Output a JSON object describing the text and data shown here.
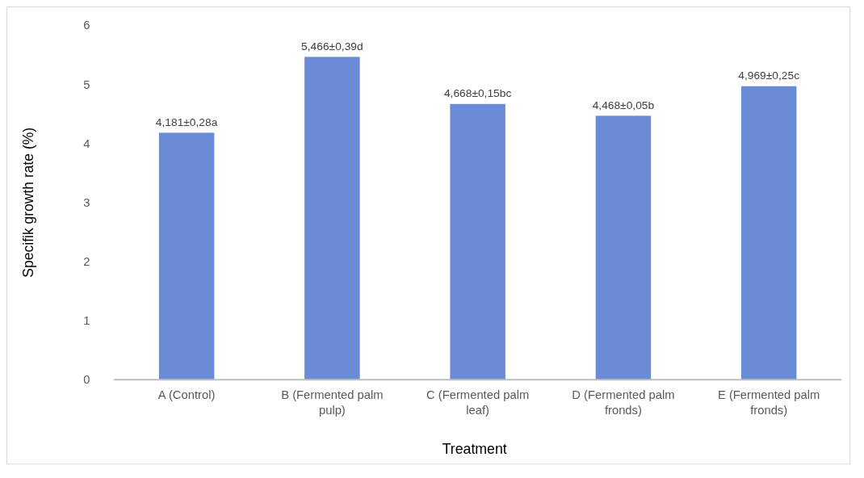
{
  "chart_data": {
    "type": "bar",
    "xlabel": "Treatment",
    "ylabel": "Specifik growth rate  (%)",
    "categories": [
      "A (Control)",
      "B (Fermented palm pulp)",
      "C (Fermented palm leaf)",
      "D (Fermented palm fronds)",
      "E (Fermented palm fronds)"
    ],
    "values": [
      4.181,
      5.466,
      4.668,
      4.468,
      4.969
    ],
    "value_labels": [
      "4,181±0,28a",
      "5,466±0,39d",
      "4,668±0,15bc",
      "4,468±0,05b",
      "4,969±0,25c"
    ],
    "color": "#6a8bd6",
    "ylim": [
      0,
      6
    ],
    "yticks": [
      0,
      1,
      2,
      3,
      4,
      5,
      6
    ],
    "grid": false
  }
}
